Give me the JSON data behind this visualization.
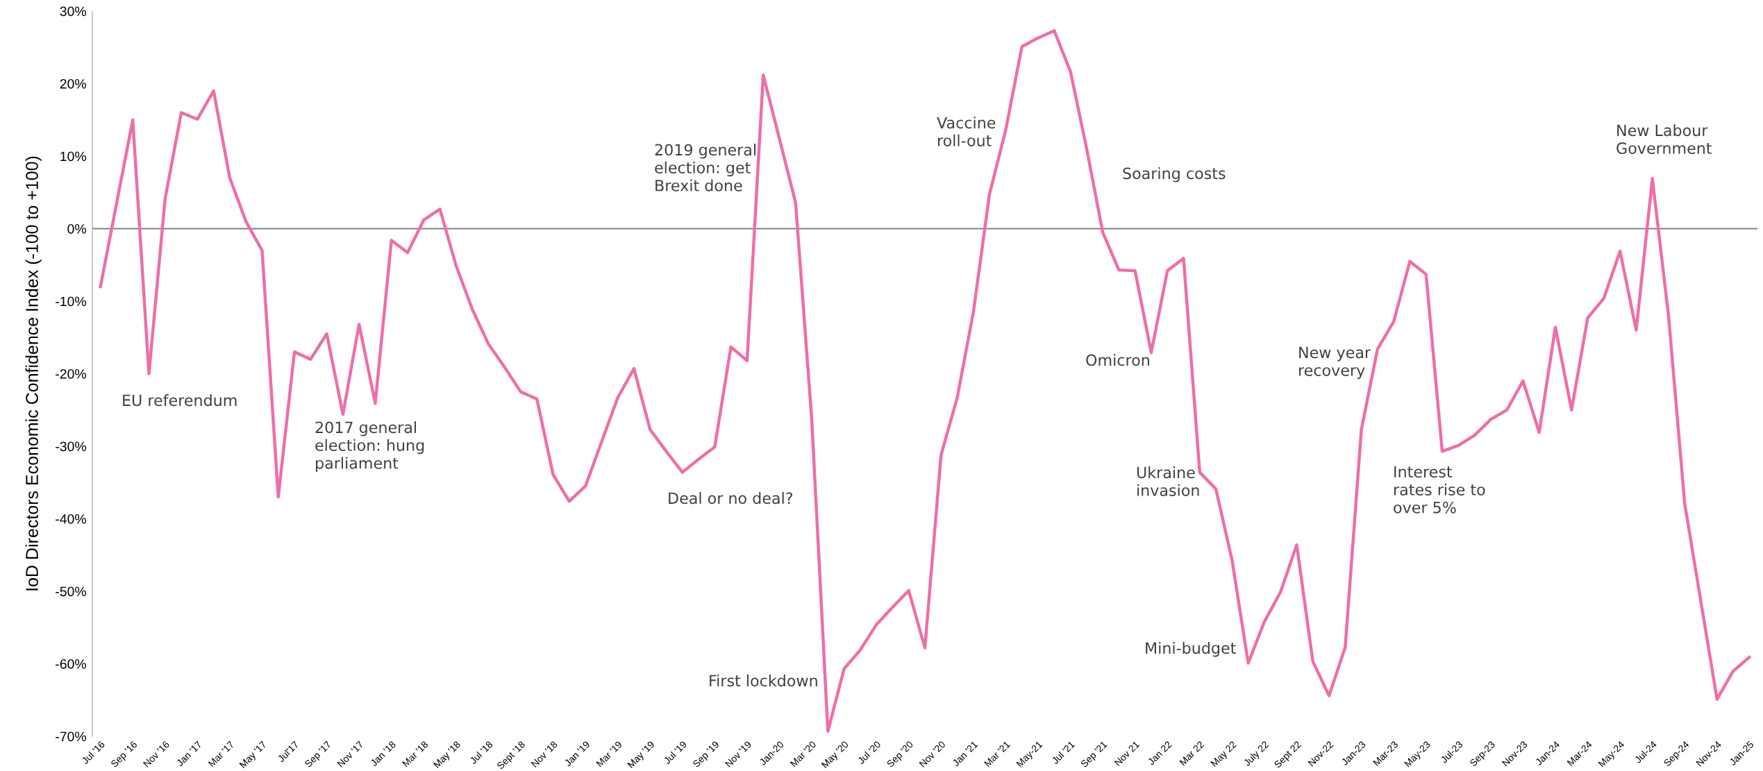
{
  "chart_data": {
    "type": "line",
    "ylabel": "IoD Directors Economic Confidence Index (-100 to +100)",
    "categories": [
      "Jul '16",
      null,
      "Sep '16",
      null,
      "Nov '16",
      null,
      "Jan '17",
      null,
      "Mar '17",
      null,
      "May '17",
      null,
      "Jul'17",
      null,
      "Sep '17",
      null,
      "Nov '17",
      null,
      "Jan '18",
      null,
      "Mar '18",
      null,
      "May '18",
      null,
      "Jul '18",
      null,
      "Sept '18",
      null,
      "Nov '18",
      null,
      "Jan '19",
      null,
      "Mar '19",
      null,
      "May '19",
      null,
      "Jul '19",
      null,
      "Sep '19",
      null,
      "Nov '19",
      null,
      "Jan-20",
      null,
      "Mar '20",
      null,
      "May '20",
      null,
      "Jul '20",
      null,
      "Sep '20",
      null,
      "Nov '20",
      null,
      "Jan '21",
      null,
      "Mar '21",
      null,
      "May-21",
      null,
      "Jul '21",
      null,
      "Sep '21",
      null,
      "Nov 21",
      null,
      "Jan 22",
      null,
      "Mar 22",
      null,
      "May 22",
      null,
      "July 22",
      null,
      "Sept 22",
      null,
      "Nov-22",
      null,
      "Jan-23",
      null,
      "Mar-23",
      null,
      "May-23",
      null,
      "Jul-23",
      null,
      "Sep-23",
      null,
      "Nov-23",
      null,
      "Jan-24",
      null,
      "Mar-24",
      null,
      "May-24",
      null,
      "Jul-24",
      null,
      "Sep-24",
      null,
      "Nov-24",
      null,
      "Jan-25"
    ],
    "series": [
      {
        "color": "#ee6ea8",
        "values": [
          -8,
          3.5,
          15,
          -20,
          4.1,
          16,
          15.1,
          19,
          7,
          1,
          -3,
          -37,
          -17,
          -18,
          -14.5,
          -25.6,
          -13.2,
          -24.1,
          -1.6,
          -3.3,
          1.2,
          2.7,
          -5.1,
          -11.1,
          -15.9,
          -19.1,
          -22.5,
          -23.5,
          -33.9,
          -37.6,
          -35.5,
          -29.4,
          -23.3,
          -19.3,
          -27.7,
          -30.7,
          -33.6,
          -31.8,
          -30.1,
          -16.3,
          -18.2,
          21.2,
          12.4,
          3.6,
          -26.3,
          -69.3,
          -60.7,
          -58.1,
          -54.6,
          -52.2,
          -49.9,
          -57.8,
          -31.2,
          -23.3,
          -11.5,
          4.8,
          13.6,
          25.1,
          26.3,
          27.3,
          21.7,
          11.1,
          -0.5,
          -5.7,
          -5.8,
          -17.1,
          -5.8,
          -4.1,
          -33.6,
          -35.9,
          -45.7,
          -59.9,
          -54.2,
          -50.1,
          -43.6,
          -59.7,
          -64.4,
          -57.7,
          -27.7,
          -16.6,
          -12.8,
          -4.5,
          -6.3,
          -30.7,
          -29.9,
          -28.5,
          -26.3,
          -25,
          -21,
          -28.1,
          -13.6,
          -25,
          -12.3,
          -9.6,
          -3.1,
          -14,
          6.9,
          -12,
          -37.9,
          -51.4,
          -64.9,
          -61,
          -59.1
        ]
      }
    ],
    "ylim": [
      -70,
      30
    ],
    "yticks": [
      {
        "value": -70,
        "label": "-70%"
      },
      {
        "value": -60,
        "label": "-60%"
      },
      {
        "value": -50,
        "label": "-50%"
      },
      {
        "value": -40,
        "label": "-40%"
      },
      {
        "value": -30,
        "label": "-30%"
      },
      {
        "value": -20,
        "label": "-20%"
      },
      {
        "value": -10,
        "label": "-10%"
      },
      {
        "value": 0,
        "label": "0%"
      },
      {
        "value": 10,
        "label": "10%"
      },
      {
        "value": 20,
        "label": "20%"
      },
      {
        "value": 30,
        "label": "30%"
      }
    ],
    "ref_lines": [
      {
        "axis": "y",
        "value": 0,
        "color": "#808080"
      }
    ],
    "annotations": [
      "EU referendum",
      "2017 general\nelection: hung\nparliament",
      "2019 general\nelection: get\nBrexit done",
      "Deal or no deal?",
      "First lockdown",
      "Vaccine\nroll-out",
      "Soaring costs",
      "Omicron",
      "Ukraine\ninvasion",
      "Mini-budget",
      "New year\nrecovery",
      "Interest\nrates rise to\nover 5%",
      "New Labour\nGovernment"
    ],
    "grid": false,
    "legend": false,
    "marker": "none",
    "line_style": "solid"
  }
}
